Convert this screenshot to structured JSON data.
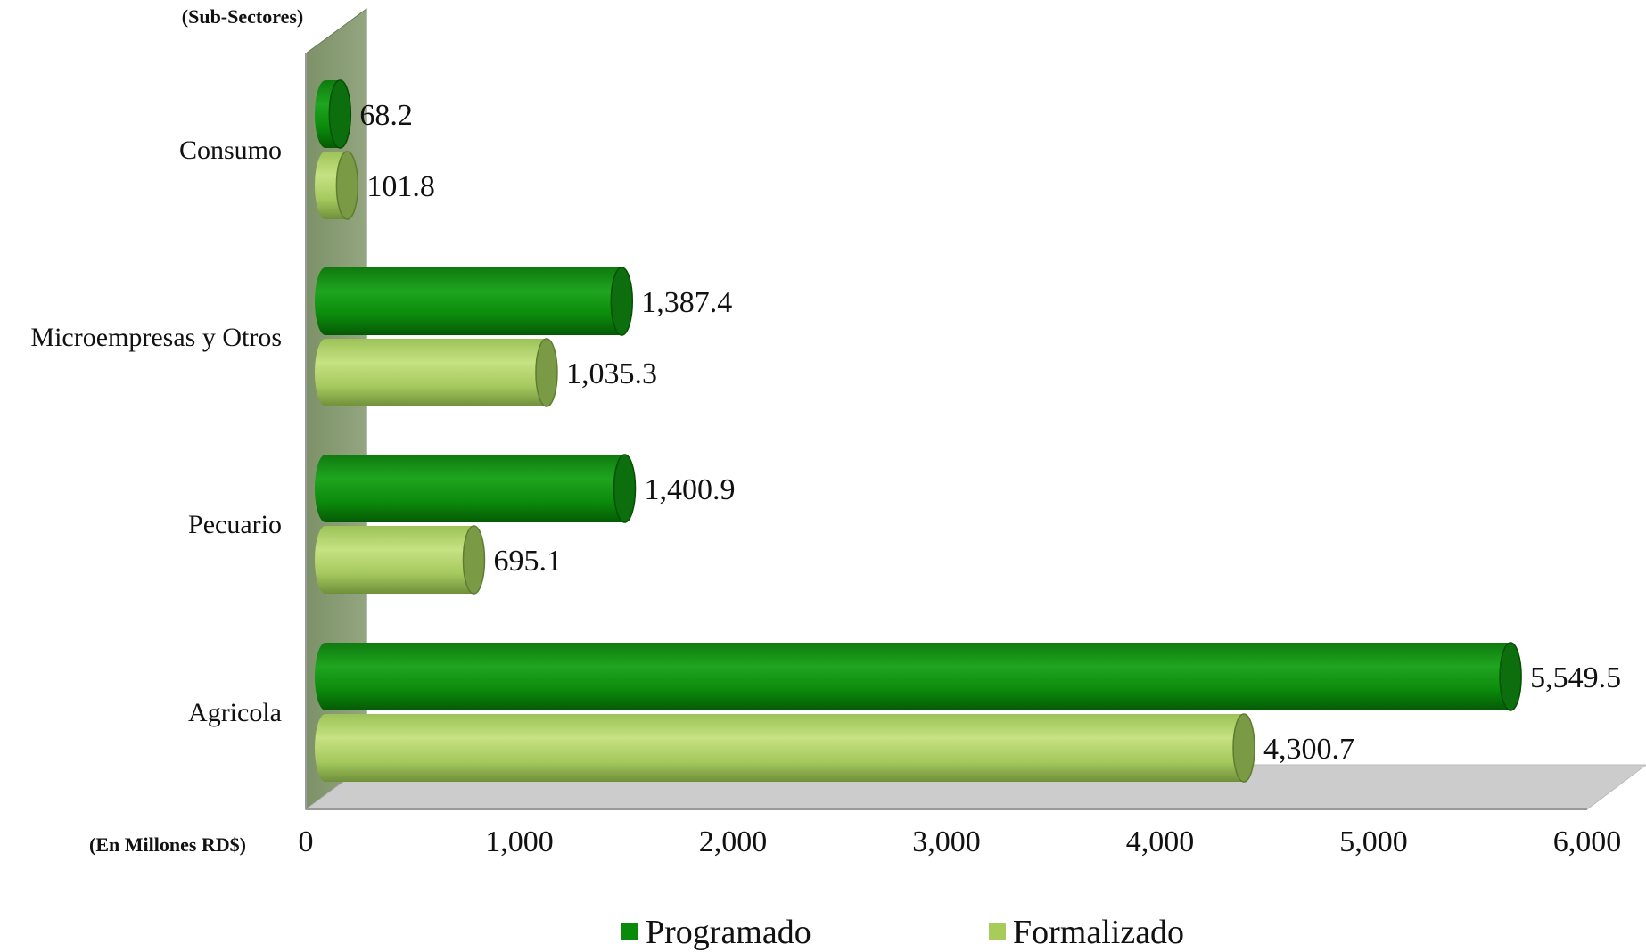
{
  "chart_data": {
    "type": "bar",
    "orientation": "horizontal",
    "three_d": true,
    "y_axis_title": "(Sub-Sectores)",
    "x_axis_title": "(En Millones RD$)",
    "categories": [
      "Consumo",
      "Microempresas y Otros",
      "Pecuario",
      "Agricola"
    ],
    "series": [
      {
        "name": "Programado",
        "color": "#0a8a0a",
        "values": [
          68.2,
          1387.4,
          1400.9,
          5549.5
        ],
        "labels": [
          "68.2",
          "1,387.4",
          "1,400.9",
          "5,549.5"
        ]
      },
      {
        "name": "Formalizado",
        "color": "#a8cc5c",
        "values": [
          101.8,
          1035.3,
          695.1,
          4300.7
        ],
        "labels": [
          "101.8",
          "1,035.3",
          "695.1",
          "4,300.7"
        ]
      }
    ],
    "xlim": [
      0,
      6000
    ],
    "x_ticks": [
      0,
      1000,
      2000,
      3000,
      4000,
      5000,
      6000
    ],
    "x_tick_labels": [
      "0",
      "1,000",
      "2,000",
      "3,000",
      "4,000",
      "5,000",
      "6,000"
    ],
    "grid": false,
    "legend_position": "bottom"
  }
}
